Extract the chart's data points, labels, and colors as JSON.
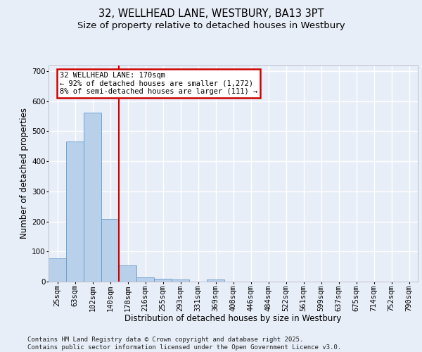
{
  "title_line1": "32, WELLHEAD LANE, WESTBURY, BA13 3PT",
  "title_line2": "Size of property relative to detached houses in Westbury",
  "xlabel": "Distribution of detached houses by size in Westbury",
  "ylabel": "Number of detached properties",
  "categories": [
    "25sqm",
    "63sqm",
    "102sqm",
    "140sqm",
    "178sqm",
    "216sqm",
    "255sqm",
    "293sqm",
    "331sqm",
    "369sqm",
    "408sqm",
    "446sqm",
    "484sqm",
    "522sqm",
    "561sqm",
    "599sqm",
    "637sqm",
    "675sqm",
    "714sqm",
    "752sqm",
    "790sqm"
  ],
  "bar_values": [
    78,
    467,
    563,
    208,
    55,
    14,
    9,
    8,
    0,
    8,
    0,
    0,
    0,
    0,
    0,
    0,
    0,
    0,
    0,
    0,
    0
  ],
  "bar_color": "#b8d0ea",
  "bar_edge_color": "#6699cc",
  "background_color": "#e8eef8",
  "grid_color": "#ffffff",
  "annotation_text": "32 WELLHEAD LANE: 170sqm\n← 92% of detached houses are smaller (1,272)\n8% of semi-detached houses are larger (111) →",
  "annotation_box_color": "#ffffff",
  "annotation_border_color": "#cc0000",
  "vline_x": 3.5,
  "vline_color": "#cc0000",
  "ylim": [
    0,
    720
  ],
  "yticks": [
    0,
    100,
    200,
    300,
    400,
    500,
    600,
    700
  ],
  "footer_text": "Contains HM Land Registry data © Crown copyright and database right 2025.\nContains public sector information licensed under the Open Government Licence v3.0.",
  "title_fontsize": 10.5,
  "subtitle_fontsize": 9.5,
  "axis_label_fontsize": 8.5,
  "tick_fontsize": 7.5,
  "annotation_fontsize": 7.5,
  "footer_fontsize": 6.5
}
